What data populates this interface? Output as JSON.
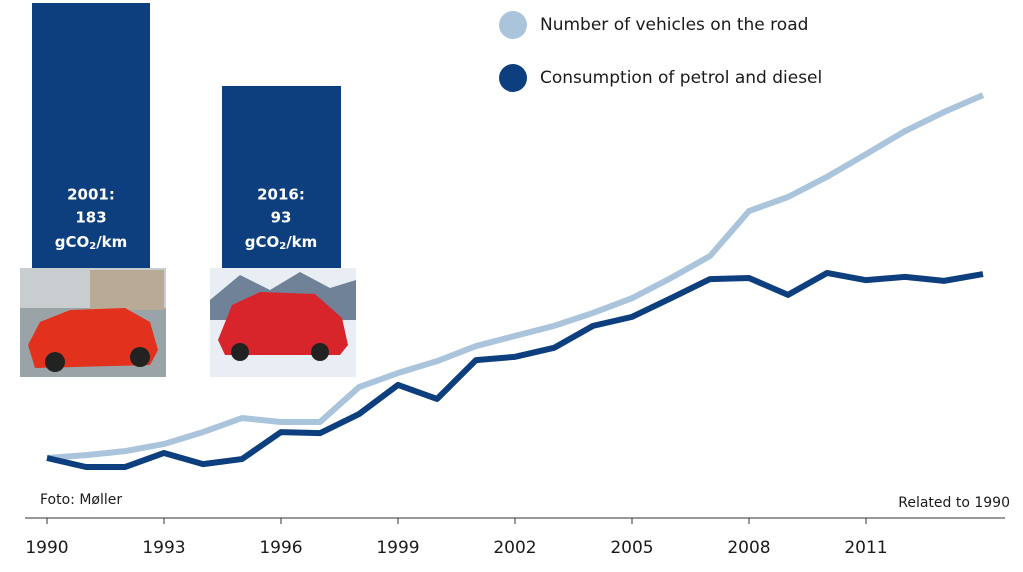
{
  "chart_data": {
    "type": "line",
    "x": [
      1990,
      1991,
      1992,
      1993,
      1994,
      1995,
      1996,
      1997,
      1998,
      1999,
      2000,
      2001,
      2002,
      2003,
      2004,
      2005,
      2006,
      2007,
      2008,
      2009,
      2010,
      2011,
      2012,
      2013,
      2014
    ],
    "series": [
      {
        "name": "Number of vehicles on the road",
        "color": "#aac4dc",
        "values": [
          100,
          100.8,
          101.9,
          103.9,
          107.2,
          111.1,
          110,
          110,
          119.7,
          123.6,
          126.9,
          131.1,
          133.9,
          136.7,
          140.3,
          144.4,
          150,
          156.1,
          168.6,
          172.5,
          178.1,
          184.4,
          190.8,
          196.1,
          200.8
        ]
      },
      {
        "name": "Consumption of petrol and diesel",
        "color": "#0d3f7f",
        "values": [
          100,
          97.5,
          97.5,
          101.4,
          98.3,
          99.7,
          107.2,
          106.9,
          112.2,
          120.3,
          116.4,
          127.2,
          128.1,
          130.6,
          136.7,
          139.2,
          144.4,
          149.7,
          150,
          145.3,
          151.4,
          149.4,
          150.3,
          149.2,
          151.1
        ]
      }
    ],
    "xlim": [
      1990,
      2014
    ],
    "xticks": [
      1990,
      1993,
      1996,
      1999,
      2002,
      2005,
      2008,
      2011
    ],
    "ylim": [
      95,
      225
    ],
    "annotations": {
      "photo_credit": "Foto: Møller",
      "baseline_note": "Related to 1990"
    },
    "boxes": [
      {
        "year": "2001:",
        "value": "183",
        "unit_pre": "gCO",
        "unit_sub": "2",
        "unit_post": "/km"
      },
      {
        "year": "2016:",
        "value": "93",
        "unit_pre": "gCO",
        "unit_sub": "2",
        "unit_post": "/km"
      }
    ]
  }
}
